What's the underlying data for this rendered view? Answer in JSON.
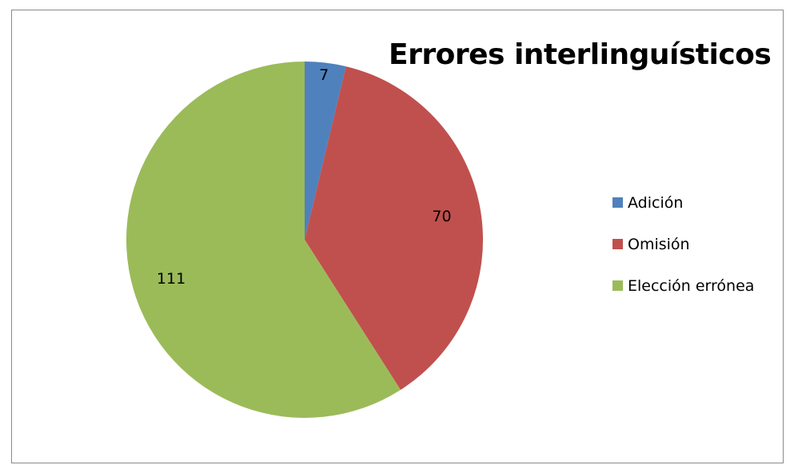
{
  "chart_data": {
    "type": "pie",
    "title": "Errores interlinguísticos",
    "categories": [
      "Adición",
      "Omisión",
      "Elección errónea"
    ],
    "values": [
      7,
      70,
      111
    ],
    "data_labels": [
      "7",
      "70",
      "111"
    ],
    "colors": [
      "#4f81bd",
      "#c0504d",
      "#9bbb59"
    ],
    "start_angle": "12 o'clock",
    "direction": "clockwise",
    "legend_position": "right"
  }
}
